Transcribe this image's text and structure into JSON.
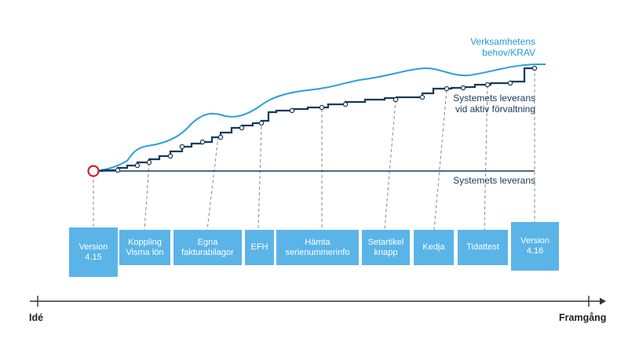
{
  "labels": {
    "need": "Verksamhetens\nbehov/KRAV",
    "managed": "Systemets leverans\nvid aktiv förvaltning",
    "base": "Systemets leverans"
  },
  "boxes": [
    {
      "text": "Version\n4.15"
    },
    {
      "text": "Koppling\nVisma lön"
    },
    {
      "text": "Egna\nfakturabilagor"
    },
    {
      "text": "EFH"
    },
    {
      "text": "Hämta\nserienummerinfo"
    },
    {
      "text": "Setartikel\nknapp"
    },
    {
      "text": "Kedja"
    },
    {
      "text": "Tidattest"
    },
    {
      "text": "Version\n4.16"
    }
  ],
  "axis": {
    "start": "Idé",
    "end": "Framgång"
  },
  "colors": {
    "need": "#1e9bd7",
    "managed": "#143a5a",
    "box": "#5ab4e8",
    "start_marker": "#c0272d"
  }
}
